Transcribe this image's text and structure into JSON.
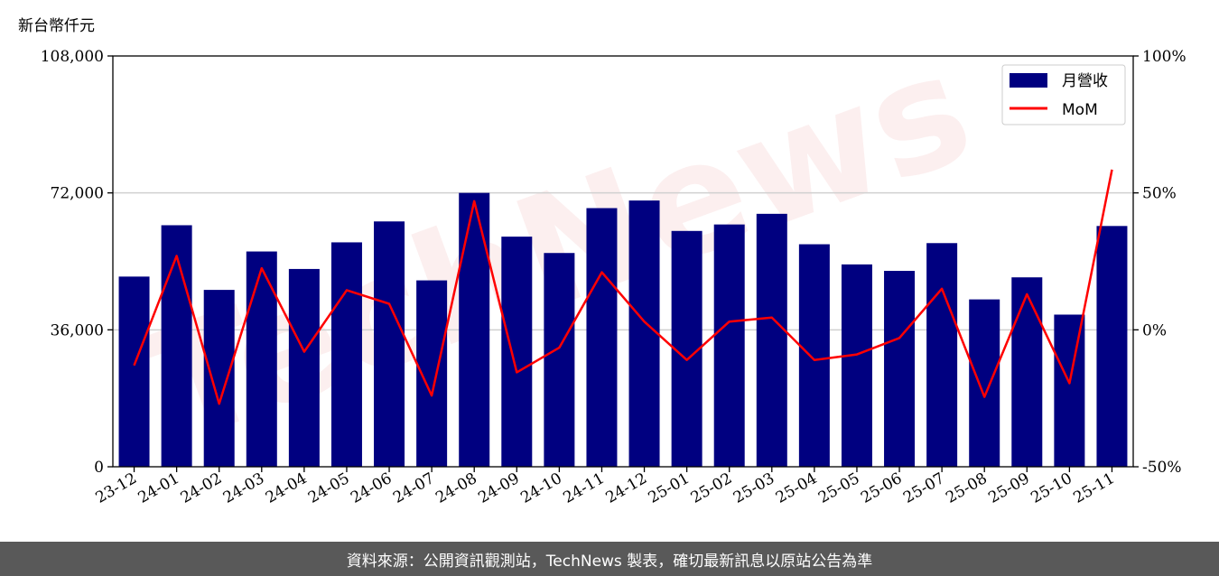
{
  "unit_label": "新台幣仟元",
  "watermark": "TechNews",
  "footer": "資料來源：公開資訊觀測站，TechNews 製表，確切最新訊息以原站公告為準",
  "colors": {
    "bar": "#000080",
    "line": "#ff0000",
    "grid": "#d0d0d0",
    "footer_bg": "#595959"
  },
  "chart_data": {
    "type": "bar",
    "categories": [
      "23-12",
      "24-01",
      "24-02",
      "24-03",
      "24-04",
      "24-05",
      "24-06",
      "24-07",
      "24-08",
      "24-09",
      "24-10",
      "24-11",
      "24-12",
      "25-01",
      "25-02",
      "25-03",
      "25-04",
      "25-05",
      "25-06",
      "25-07",
      "25-08",
      "25-09",
      "25-10",
      "25-11"
    ],
    "series": [
      {
        "name": "月營收",
        "type": "bar",
        "axis": "left",
        "values": [
          50000,
          63500,
          46500,
          56600,
          52000,
          59000,
          64500,
          49000,
          72000,
          60500,
          56200,
          68000,
          70000,
          62000,
          63700,
          66500,
          58500,
          53200,
          51500,
          58800,
          44000,
          49800,
          40000,
          63300
        ]
      },
      {
        "name": "MoM",
        "type": "line",
        "axis": "right",
        "unit": "%",
        "values": [
          -13,
          27,
          -27,
          22.5,
          -8,
          14.5,
          9.5,
          -24,
          47,
          -15.5,
          -6.5,
          21,
          3,
          -11,
          3,
          4.5,
          -11,
          -9,
          -3,
          15,
          -24.5,
          13,
          -19.5,
          58.5
        ]
      }
    ],
    "left_axis": {
      "ylim": [
        0,
        108000
      ],
      "ticks": [
        "0",
        "36,000",
        "72,000",
        "108,000"
      ]
    },
    "right_axis": {
      "ylim": [
        -50,
        100
      ],
      "ticks": [
        "-50%",
        "0%",
        "50%",
        "100%"
      ]
    },
    "grid": "horizontal",
    "legend_position": "top-right"
  }
}
